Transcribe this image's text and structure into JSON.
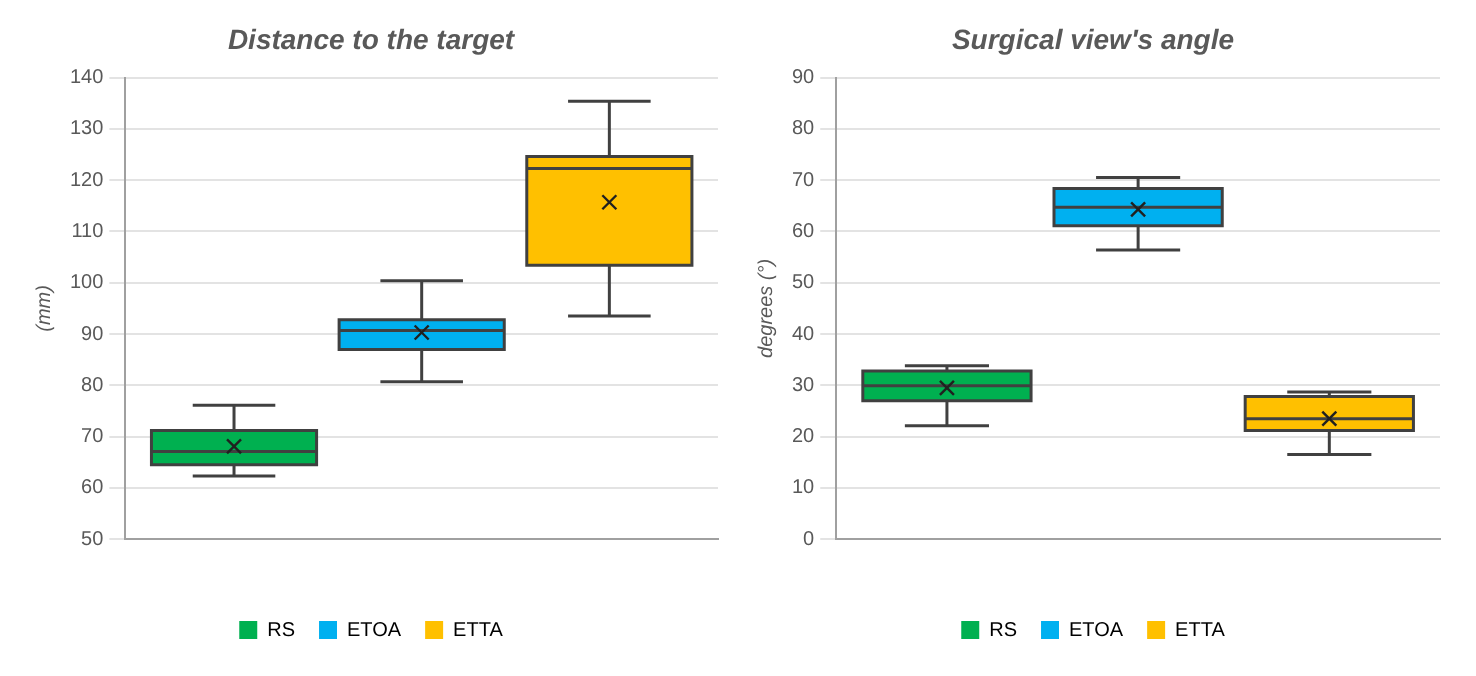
{
  "chart_data": [
    {
      "type": "box",
      "title": "Distance to the target",
      "ylabel": "(mm)",
      "categories": [
        null
      ],
      "ylim": [
        50,
        140
      ],
      "yticks": [
        50,
        60,
        70,
        80,
        90,
        100,
        110,
        120,
        130,
        140
      ],
      "grid": "y",
      "legend": "bottom",
      "series": [
        {
          "name": "RS",
          "color": "#00b050",
          "boxes": [
            {
              "low": 62.3,
              "q1": 64.5,
              "median": 67.1,
              "q3": 71.2,
              "high": 76.1,
              "mean": 68.1
            }
          ]
        },
        {
          "name": "ETOA",
          "color": "#00b0f0",
          "boxes": [
            {
              "low": 80.7,
              "q1": 87.0,
              "median": 90.7,
              "q3": 92.8,
              "high": 100.4,
              "mean": 90.3
            }
          ]
        },
        {
          "name": "ETTA",
          "color": "#ffc000",
          "boxes": [
            {
              "low": 93.5,
              "q1": 103.4,
              "median": 122.3,
              "q3": 124.6,
              "high": 135.4,
              "mean": 115.7
            }
          ]
        }
      ]
    },
    {
      "type": "box",
      "title": "Surgical view's angle",
      "ylabel": "degrees (°)",
      "categories": [
        null
      ],
      "ylim": [
        0,
        90
      ],
      "yticks": [
        0,
        10,
        20,
        30,
        40,
        50,
        60,
        70,
        80,
        90
      ],
      "grid": "y",
      "legend": "bottom",
      "series": [
        {
          "name": "RS",
          "color": "#00b050",
          "boxes": [
            {
              "low": 22.1,
              "q1": 27.0,
              "median": 29.9,
              "q3": 32.8,
              "high": 33.8,
              "mean": 29.5
            }
          ]
        },
        {
          "name": "ETOA",
          "color": "#00b0f0",
          "boxes": [
            {
              "low": 56.4,
              "q1": 61.1,
              "median": 64.7,
              "q3": 68.4,
              "high": 70.5,
              "mean": 64.3
            }
          ]
        },
        {
          "name": "ETTA",
          "color": "#ffc000",
          "boxes": [
            {
              "low": 16.5,
              "q1": 21.2,
              "median": 23.5,
              "q3": 27.8,
              "high": 28.7,
              "mean": 23.5
            }
          ]
        }
      ]
    }
  ]
}
